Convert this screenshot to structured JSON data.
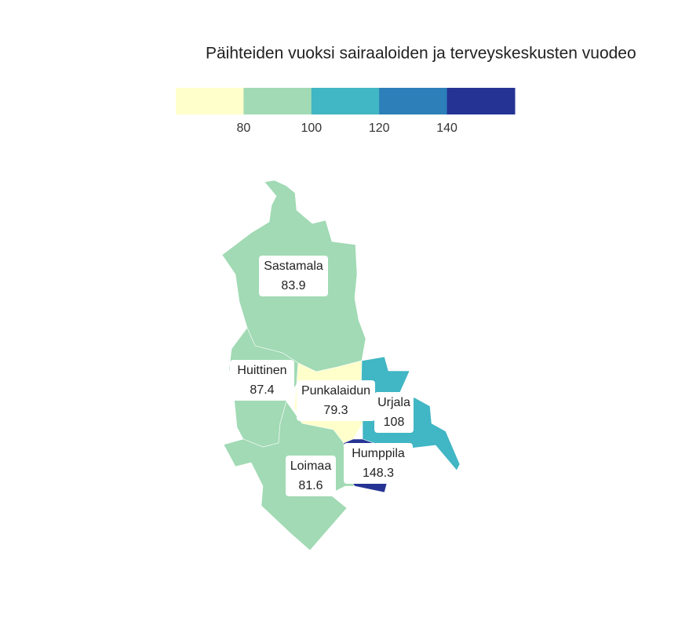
{
  "chart_data": {
    "type": "choropleth",
    "title": "Päihteiden vuoksi sairaaloiden ja terveyskeskusten vuodeo",
    "legend_lim": [
      60,
      160
    ],
    "legend_ticks": [
      80,
      100,
      120,
      140
    ],
    "colors": [
      "#ffffcc",
      "#a1dab4",
      "#41b6c4",
      "#2c7fb8",
      "#253494"
    ],
    "regions": [
      {
        "name": "Sastamala",
        "value": 83.9
      },
      {
        "name": "Huittinen",
        "value": 87.4
      },
      {
        "name": "Punkalaidun",
        "value": 79.3
      },
      {
        "name": "Urjala",
        "value": 108
      },
      {
        "name": "Humppila",
        "value": 148.3
      },
      {
        "name": "Loimaa",
        "value": 81.6
      }
    ]
  }
}
